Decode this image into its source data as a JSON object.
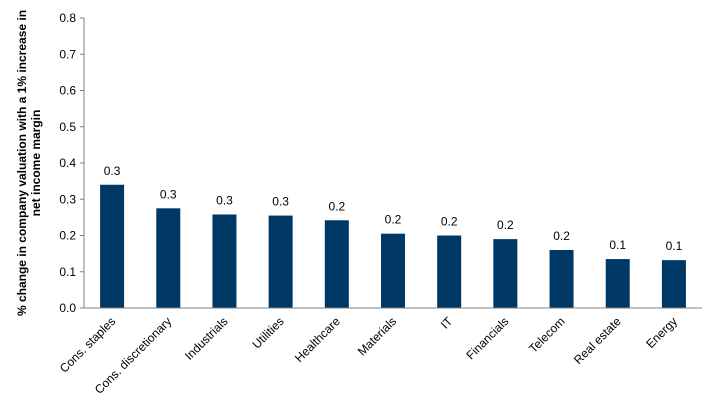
{
  "chart_data": {
    "type": "bar",
    "title": "",
    "xlabel": "",
    "ylabel_lines": [
      "% change in company valuation with a 1% increase in",
      "net income margin"
    ],
    "ylim": [
      0,
      0.8
    ],
    "yticks": [
      "0.0",
      "0.1",
      "0.2",
      "0.3",
      "0.4",
      "0.5",
      "0.6",
      "0.7",
      "0.8"
    ],
    "grid": false,
    "categories": [
      "Cons. staples",
      "Cons. discretionary",
      "Industrials",
      "Utilities",
      "Healthcare",
      "Materials",
      "IT",
      "Financials",
      "Telecom",
      "Real estate",
      "Energy"
    ],
    "values": [
      0.34,
      0.275,
      0.258,
      0.255,
      0.242,
      0.205,
      0.2,
      0.19,
      0.16,
      0.135,
      0.132
    ],
    "data_labels": [
      "0.3",
      "0.3",
      "0.3",
      "0.3",
      "0.2",
      "0.2",
      "0.2",
      "0.2",
      "0.2",
      "0.1",
      "0.1"
    ],
    "bar_color": "#003865"
  }
}
